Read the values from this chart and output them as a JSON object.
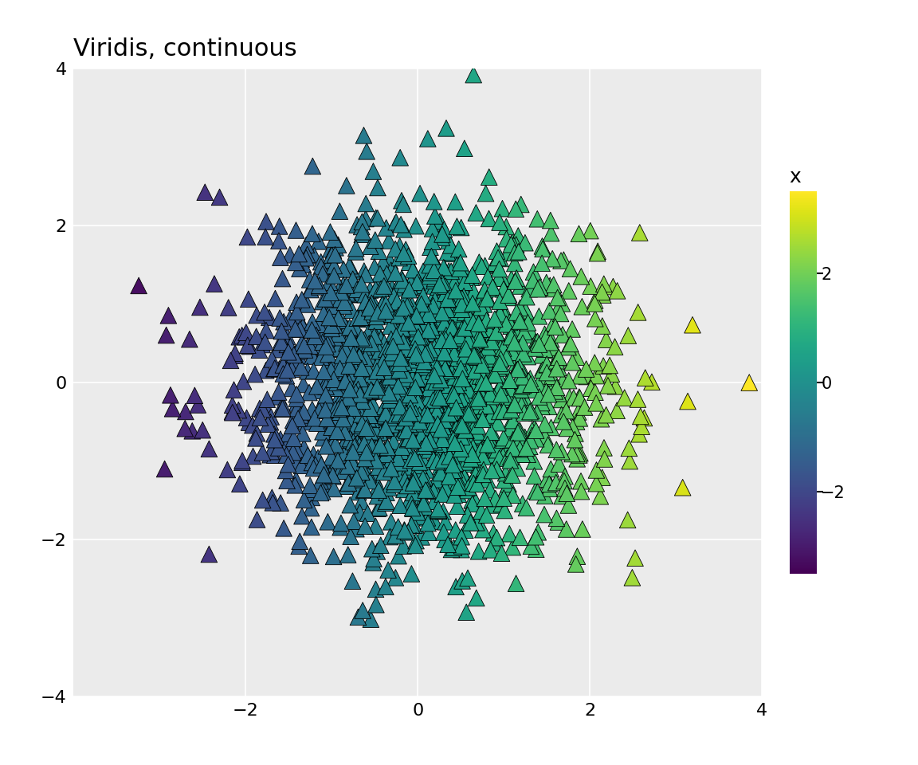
{
  "title": "Viridis, continuous",
  "title_fontsize": 22,
  "n_points": 2000,
  "seed": 42,
  "xlim": [
    -4,
    4
  ],
  "ylim": [
    -4,
    4
  ],
  "xticks": [
    -2,
    0,
    2,
    4
  ],
  "yticks": [
    -4,
    -2,
    0,
    2,
    4
  ],
  "background_color": "#EBEBEB",
  "grid_color": "#FFFFFF",
  "colorbar_label": "x",
  "colorbar_ticks": [
    -2,
    0,
    2
  ],
  "marker_size": 220,
  "cmap": "viridis",
  "vmin": -3.5,
  "vmax": 3.5,
  "edge_linewidth": 0.6
}
